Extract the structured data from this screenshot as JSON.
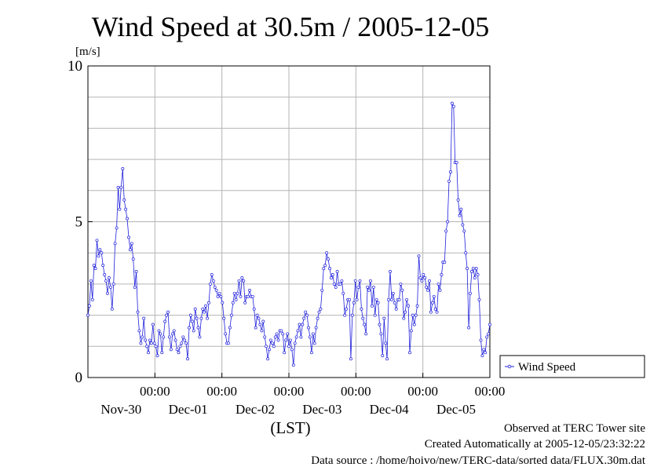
{
  "chart_data": {
    "type": "line",
    "title": "Wind Speed at 30.5m / 2005-12-05",
    "ylabel": "[m/s]",
    "xlabel": "(LST)",
    "ylim": [
      0,
      10
    ],
    "yticks": [
      0,
      5,
      10
    ],
    "xlim": [
      0,
      6
    ],
    "grid": true,
    "legend_position": "right",
    "x_ticks": [
      {
        "x": 1,
        "time": "00:00",
        "date": "Nov-30"
      },
      {
        "x": 2,
        "time": "00:00",
        "date": "Dec-01"
      },
      {
        "x": 3,
        "time": "00:00",
        "date": "Dec-02"
      },
      {
        "x": 4,
        "time": "00:00",
        "date": "Dec-03"
      },
      {
        "x": 5,
        "time": "00:00",
        "date": "Dec-04"
      },
      {
        "x": 6,
        "time": "00:00",
        "date": "Dec-05"
      }
    ],
    "series_color": "#1f1fdc",
    "series": [
      {
        "name": "Wind Speed",
        "values": [
          2.0,
          2.3,
          3.1,
          2.5,
          3.6,
          3.5,
          4.4,
          3.9,
          4.1,
          4.0,
          3.6,
          3.3,
          3.1,
          2.7,
          3.2,
          2.9,
          2.2,
          3.0,
          4.3,
          4.8,
          6.1,
          5.4,
          6.1,
          6.7,
          5.7,
          5.4,
          5.1,
          4.5,
          4.1,
          4.3,
          3.8,
          2.9,
          3.4,
          2.1,
          1.5,
          1.1,
          1.3,
          1.9,
          1.2,
          1.0,
          0.8,
          1.2,
          1.1,
          1.7,
          1.1,
          1.0,
          0.7,
          1.5,
          1.4,
          0.8,
          1.3,
          1.8,
          2.0,
          2.1,
          1.3,
          0.9,
          1.4,
          1.5,
          1.2,
          0.9,
          0.8,
          1.0,
          1.1,
          1.3,
          1.2,
          1.1,
          0.6,
          1.6,
          2.0,
          1.8,
          1.5,
          2.2,
          1.9,
          1.6,
          1.3,
          1.9,
          2.2,
          2.1,
          2.3,
          1.9,
          2.4,
          3.0,
          3.3,
          3.1,
          2.9,
          2.8,
          2.6,
          2.7,
          2.6,
          2.4,
          1.9,
          1.4,
          1.1,
          1.1,
          1.6,
          2.0,
          2.4,
          2.7,
          2.5,
          2.7,
          3.1,
          2.6,
          3.2,
          3.1,
          2.4,
          2.6,
          2.6,
          2.8,
          2.6,
          2.6,
          2.2,
          1.6,
          2.0,
          1.9,
          1.7,
          1.5,
          1.8,
          1.3,
          1.0,
          0.6,
          0.9,
          1.2,
          1.1,
          1.0,
          1.3,
          1.4,
          1.2,
          1.5,
          1.5,
          1.4,
          0.8,
          1.2,
          1.4,
          1.0,
          1.2,
          0.9,
          0.4,
          1.1,
          1.3,
          1.5,
          1.7,
          1.3,
          1.7,
          1.9,
          2.1,
          2.0,
          1.6,
          1.3,
          0.8,
          1.4,
          1.1,
          1.6,
          1.9,
          2.1,
          2.2,
          2.8,
          3.5,
          3.6,
          4.0,
          3.8,
          3.5,
          3.2,
          3.3,
          3.0,
          2.9,
          3.4,
          3.0,
          3.0,
          3.1,
          2.7,
          2.0,
          2.2,
          2.5,
          2.5,
          0.6,
          2.0,
          2.4,
          3.1,
          2.5,
          2.9,
          3.1,
          2.2,
          1.9,
          1.7,
          1.4,
          2.9,
          2.8,
          3.1,
          2.3,
          2.9,
          2.0,
          2.5,
          2.4,
          1.7,
          1.4,
          0.7,
          1.9,
          1.1,
          0.6,
          2.5,
          3.4,
          2.5,
          2.7,
          2.4,
          2.2,
          2.5,
          2.5,
          3.0,
          2.8,
          1.9,
          2.1,
          2.5,
          2.3,
          0.8,
          1.5,
          2.0,
          1.7,
          2.0,
          2.3,
          3.9,
          3.2,
          3.1,
          3.3,
          3.2,
          2.9,
          2.8,
          3.1,
          2.1,
          2.4,
          2.6,
          2.2,
          2.1,
          3.0,
          2.8,
          3.3,
          3.7,
          3.7,
          4.7,
          5.0,
          6.3,
          6.6,
          8.8,
          8.7,
          6.9,
          6.9,
          5.7,
          5.2,
          5.4,
          4.9,
          4.7,
          4.0,
          3.5,
          1.6,
          2.7,
          3.4,
          3.5,
          3.2,
          3.5,
          3.3,
          2.5,
          1.2,
          0.7,
          0.9,
          0.8,
          1.3,
          1.4,
          1.7
        ]
      }
    ]
  },
  "footer": {
    "line1": "Observed at TERC Tower site",
    "line2": "Created Automatically at 2005-12-05/23:32:22",
    "line3": "Data source : /home/hoivo/new/TERC-data/sorted  data/FLUX.30m.dat"
  }
}
